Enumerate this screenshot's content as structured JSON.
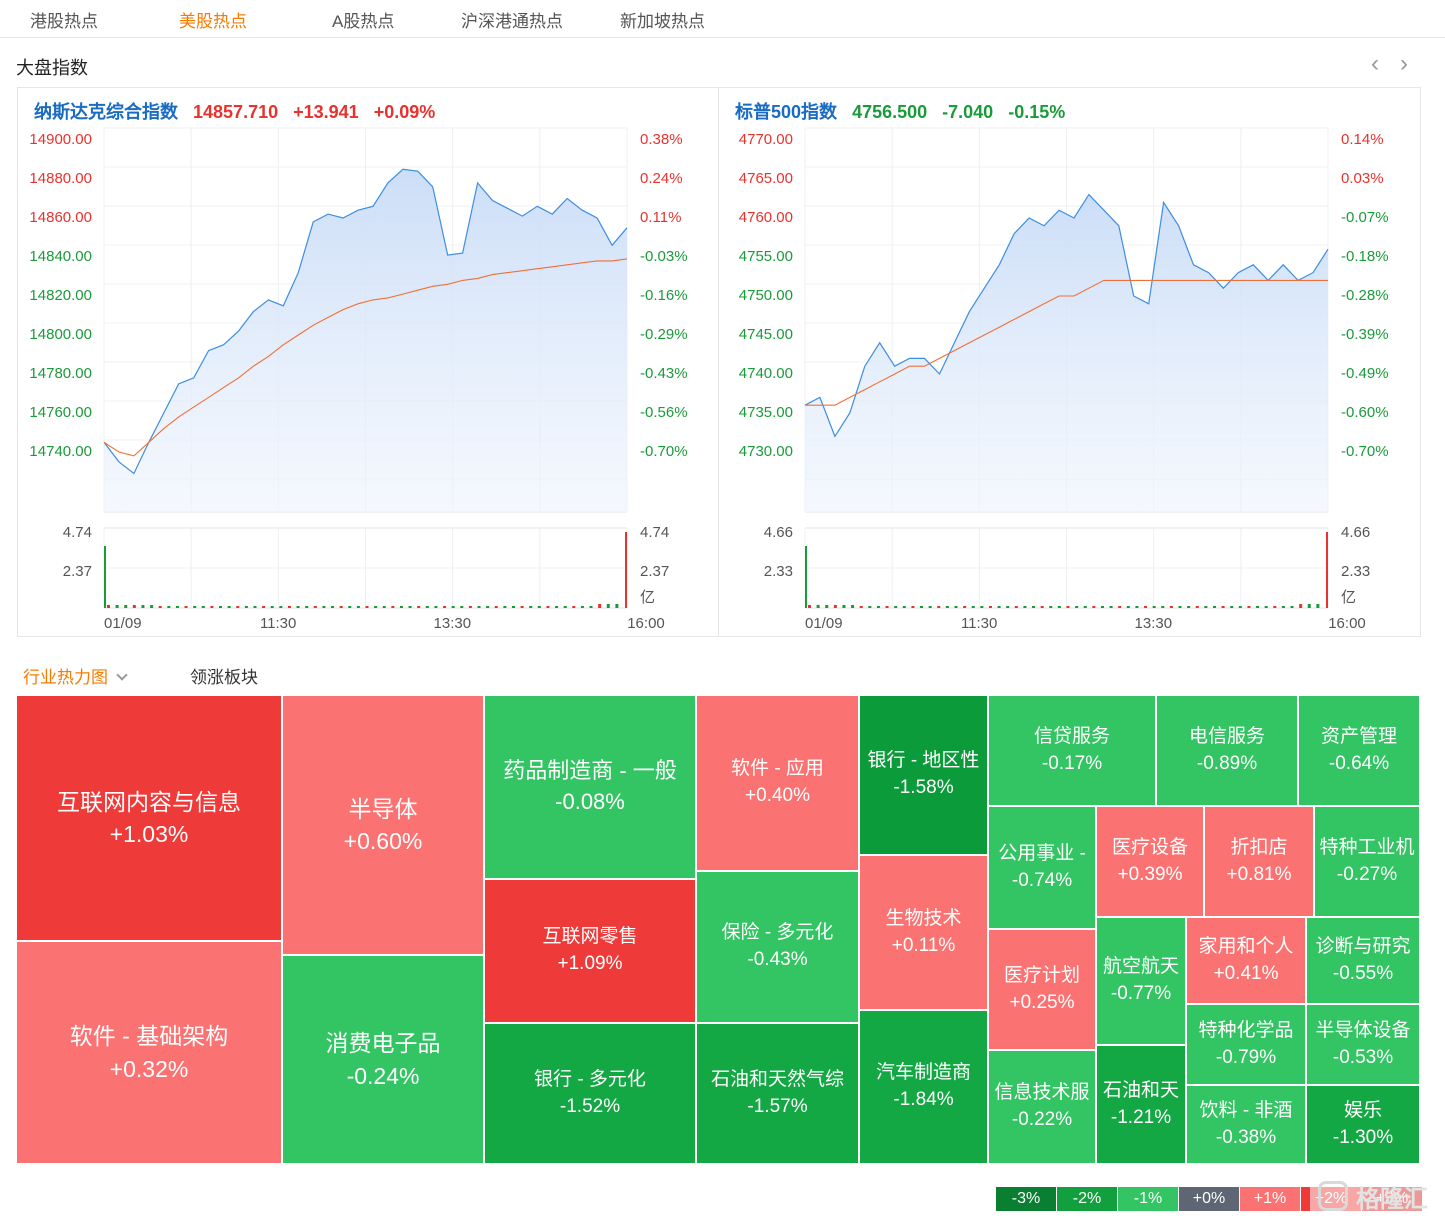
{
  "tabs": [
    "港股热点",
    "美股热点",
    "A股热点",
    "沪深港通热点",
    "新加坡热点"
  ],
  "active_tab": 1,
  "section_title": "大盘指数",
  "pager": {
    "prev": "‹",
    "next": "›"
  },
  "panels": [
    {
      "name": "纳斯达克综合指数",
      "price": "14857.710",
      "change": "+13.941",
      "pct": "+0.09%",
      "direction": "up",
      "left_axis": [
        "14900.00",
        "14880.00",
        "14860.00",
        "14840.00",
        "14820.00",
        "14800.00",
        "14780.00",
        "14760.00",
        "14740.00"
      ],
      "right_axis": [
        "0.38%",
        "0.24%",
        "0.11%",
        "-0.03%",
        "-0.16%",
        "-0.29%",
        "-0.43%",
        "-0.56%",
        "-0.70%"
      ],
      "vol_axis": [
        "4.74",
        "2.37"
      ],
      "vol_unit": "亿",
      "time_axis": [
        "01/09",
        "11:30",
        "13:30",
        "16:00"
      ],
      "ylim": [
        14720,
        14900
      ],
      "price_series": [
        14745,
        14735,
        14729,
        14745,
        14760,
        14775,
        14778,
        14792,
        14795,
        14802,
        14812,
        14818,
        14815,
        14832,
        14858,
        14862,
        14860,
        14864,
        14866,
        14878,
        14885,
        14884,
        14876,
        14841,
        14842,
        14878,
        14869,
        14865,
        14861,
        14866,
        14862,
        14870,
        14864,
        14860,
        14846,
        14855
      ],
      "avg_series": [
        14745,
        14740,
        14738,
        14745,
        14752,
        14758,
        14763,
        14768,
        14773,
        14778,
        14784,
        14789,
        14795,
        14800,
        14805,
        14809,
        14813,
        14816,
        14818,
        14819,
        14821,
        14823,
        14825,
        14826,
        14828,
        14829,
        14831,
        14832,
        14833,
        14834,
        14835,
        14836,
        14837,
        14838,
        14838,
        14839
      ]
    },
    {
      "name": "标普500指数",
      "price": "4756.500",
      "change": "-7.040",
      "pct": "-0.15%",
      "direction": "down",
      "left_axis": [
        "4770.00",
        "4765.00",
        "4760.00",
        "4755.00",
        "4750.00",
        "4745.00",
        "4740.00",
        "4735.00",
        "4730.00"
      ],
      "right_axis": [
        "0.14%",
        "0.03%",
        "-0.07%",
        "-0.18%",
        "-0.28%",
        "-0.39%",
        "-0.49%",
        "-0.60%",
        "-0.70%"
      ],
      "vol_axis": [
        "4.66",
        "2.33"
      ],
      "vol_unit": "亿",
      "time_axis": [
        "01/09",
        "11:30",
        "13:30",
        "16:00"
      ],
      "ylim": [
        4726,
        4770
      ],
      "price_series": [
        4736,
        4737,
        4732,
        4735,
        4741,
        4744,
        4741,
        4742,
        4742,
        4740,
        4744,
        4748,
        4751,
        4754,
        4758,
        4760,
        4759,
        4761,
        4760,
        4763,
        4761,
        4759,
        4750,
        4749,
        4762,
        4759,
        4754,
        4753,
        4751,
        4753,
        4754,
        4752,
        4754,
        4752,
        4753,
        4756
      ],
      "avg_series": [
        4736,
        4736,
        4736,
        4737,
        4738,
        4739,
        4740,
        4741,
        4741,
        4742,
        4743,
        4744,
        4745,
        4746,
        4747,
        4748,
        4749,
        4750,
        4750,
        4751,
        4752,
        4752,
        4752,
        4752,
        4752,
        4752,
        4752,
        4752,
        4752,
        4752,
        4752,
        4752,
        4752,
        4752,
        4752,
        4752
      ]
    }
  ],
  "colors": {
    "up": "#e8322e",
    "down": "#1a9b3a",
    "price_line": "#3d8ee0",
    "avg_line": "#f07036",
    "area": "#dde9fb"
  },
  "subtabs": [
    "行业热力图",
    "领涨板块"
  ],
  "heatmap": [
    {
      "name": "互联网内容与信息",
      "pct": "+1.03%",
      "cls": "c-r1",
      "size": 23
    },
    {
      "name": "软件 - 基础架构",
      "pct": "+0.32%",
      "cls": "c-r2",
      "size": 23
    },
    {
      "name": "半导体",
      "pct": "+0.60%",
      "cls": "c-r2",
      "size": 23
    },
    {
      "name": "消费电子品",
      "pct": "-0.24%",
      "cls": "c-g1",
      "size": 23
    },
    {
      "name": "药品制造商 - 一般",
      "pct": "-0.08%",
      "cls": "c-g1",
      "size": 22
    },
    {
      "name": "互联网零售",
      "pct": "+1.09%",
      "cls": "c-r1",
      "size": 19
    },
    {
      "name": "银行 - 多元化",
      "pct": "-1.52%",
      "cls": "c-g2",
      "size": 19
    },
    {
      "name": "软件 - 应用",
      "pct": "+0.40%",
      "cls": "c-r2",
      "size": 19
    },
    {
      "name": "保险 - 多元化",
      "pct": "-0.43%",
      "cls": "c-g1",
      "size": 19
    },
    {
      "name": "石油和天然气综",
      "pct": "-1.57%",
      "cls": "c-g2",
      "size": 19
    },
    {
      "name": "银行 - 地区性",
      "pct": "-1.58%",
      "cls": "c-g3",
      "size": 19
    },
    {
      "name": "生物技术",
      "pct": "+0.11%",
      "cls": "c-r2",
      "size": 19
    },
    {
      "name": "汽车制造商",
      "pct": "-1.84%",
      "cls": "c-g2",
      "size": 19
    },
    {
      "name": "信贷服务",
      "pct": "-0.17%",
      "cls": "c-g1",
      "size": 19
    },
    {
      "name": "电信服务",
      "pct": "-0.89%",
      "cls": "c-g1",
      "size": 19
    },
    {
      "name": "资产管理",
      "pct": "-0.64%",
      "cls": "c-g1",
      "size": 19
    },
    {
      "name": "公用事业 -",
      "pct": "-0.74%",
      "cls": "c-g1",
      "size": 19
    },
    {
      "name": "医疗设备",
      "pct": "+0.39%",
      "cls": "c-r2",
      "size": 19
    },
    {
      "name": "折扣店",
      "pct": "+0.81%",
      "cls": "c-r2",
      "size": 19
    },
    {
      "name": "特种工业机",
      "pct": "-0.27%",
      "cls": "c-g1",
      "size": 19
    },
    {
      "name": "医疗计划",
      "pct": "+0.25%",
      "cls": "c-r2",
      "size": 19
    },
    {
      "name": "航空航天",
      "pct": "-0.77%",
      "cls": "c-g1",
      "size": 19
    },
    {
      "name": "家用和个人",
      "pct": "+0.41%",
      "cls": "c-r2",
      "size": 19
    },
    {
      "name": "诊断与研究",
      "pct": "-0.55%",
      "cls": "c-g1",
      "size": 19
    },
    {
      "name": "信息技术服",
      "pct": "-0.22%",
      "cls": "c-g1",
      "size": 19
    },
    {
      "name": "石油和天",
      "pct": "-1.21%",
      "cls": "c-g2",
      "size": 19
    },
    {
      "name": "特种化学品",
      "pct": "-0.79%",
      "cls": "c-g1",
      "size": 19
    },
    {
      "name": "半导体设备",
      "pct": "-0.53%",
      "cls": "c-g1",
      "size": 19
    },
    {
      "name": "饮料 - 非酒",
      "pct": "-0.38%",
      "cls": "c-g1",
      "size": 19
    },
    {
      "name": "娱乐",
      "pct": "-1.30%",
      "cls": "c-g2",
      "size": 19
    }
  ],
  "legend": [
    {
      "label": "-3%",
      "color": "#0b7f31"
    },
    {
      "label": "-2%",
      "color": "#12a03f"
    },
    {
      "label": "-1%",
      "color": "#33c463"
    },
    {
      "label": "+0%",
      "color": "#5d6672"
    },
    {
      "label": "+1%",
      "color": "#fb7272"
    },
    {
      "label": "+2%",
      "color": "#ef3a3a"
    },
    {
      "label": "+3%",
      "color": "#d91e1e"
    }
  ],
  "watermark": "格隆汇"
}
